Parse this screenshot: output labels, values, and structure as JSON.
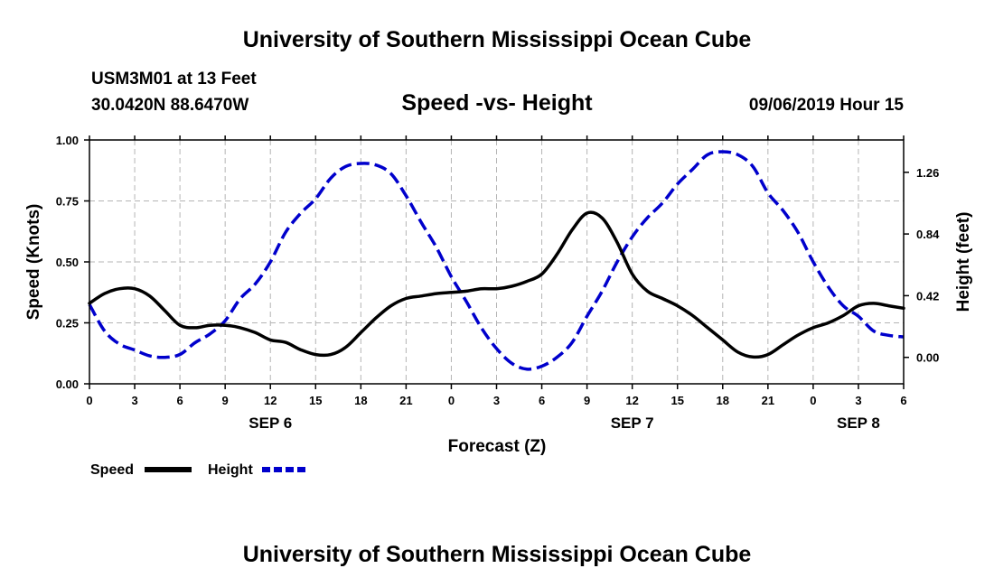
{
  "header": {
    "title": "University of Southern Mississippi Ocean Cube",
    "station": "USM3M01 at 13 Feet",
    "coords": "30.0420N 88.6470W",
    "subtitle": "Speed -vs- Height",
    "datetime": "09/06/2019 Hour 15"
  },
  "footer": {
    "title": "University of Southern Mississippi Ocean Cube"
  },
  "colors": {
    "speed": "#000000",
    "height": "#0000cc",
    "grid": "#b4b4b4"
  },
  "chart_data": {
    "type": "line",
    "title": "Speed -vs- Height",
    "xlabel": "Forecast (Z)",
    "ylabel": "Speed (Knots)",
    "y2label": "Height (feet)",
    "xlim": [
      0,
      54
    ],
    "ylim": [
      0,
      1.0
    ],
    "y2lim": [
      -0.18,
      1.48
    ],
    "grid": true,
    "legend_position": "bottom-left",
    "x_ticks": [
      0,
      3,
      6,
      9,
      12,
      15,
      18,
      21,
      24,
      27,
      30,
      33,
      36,
      39,
      42,
      45,
      48,
      51,
      54
    ],
    "x_tick_labels": [
      "0",
      "3",
      "6",
      "9",
      "12",
      "15",
      "18",
      "21",
      "0",
      "3",
      "6",
      "9",
      "12",
      "15",
      "18",
      "21",
      "0",
      "3",
      "6"
    ],
    "y_ticks": [
      0.0,
      0.25,
      0.5,
      0.75,
      1.0
    ],
    "y_tick_labels": [
      "0.00",
      "0.25",
      "0.50",
      "0.75",
      "1.00"
    ],
    "y2_ticks": [
      0.0,
      0.42,
      0.84,
      1.26
    ],
    "y2_tick_labels": [
      "0.00",
      "0.42",
      "0.84",
      "1.26"
    ],
    "day_labels": [
      {
        "x": 12,
        "label": "SEP 6"
      },
      {
        "x": 36,
        "label": "SEP 7"
      },
      {
        "x": 51,
        "label": "SEP 8"
      }
    ],
    "series": [
      {
        "name": "Speed",
        "axis": "left",
        "style": "solid",
        "x": [
          0,
          1,
          2,
          3,
          4,
          5,
          6,
          7,
          8,
          9,
          10,
          11,
          12,
          13,
          14,
          15,
          16,
          17,
          18,
          19,
          20,
          21,
          22,
          23,
          24,
          25,
          26,
          27,
          28,
          29,
          30,
          31,
          32,
          33,
          34,
          35,
          36,
          37,
          38,
          39,
          40,
          41,
          42,
          43,
          44,
          45,
          46,
          47,
          48,
          49,
          50,
          51,
          52,
          53,
          54
        ],
        "values": [
          0.33,
          0.37,
          0.39,
          0.39,
          0.36,
          0.3,
          0.24,
          0.23,
          0.24,
          0.24,
          0.23,
          0.21,
          0.18,
          0.17,
          0.14,
          0.12,
          0.12,
          0.15,
          0.21,
          0.27,
          0.32,
          0.35,
          0.36,
          0.37,
          0.375,
          0.38,
          0.39,
          0.39,
          0.4,
          0.42,
          0.45,
          0.53,
          0.63,
          0.7,
          0.68,
          0.58,
          0.45,
          0.38,
          0.35,
          0.32,
          0.28,
          0.23,
          0.18,
          0.13,
          0.11,
          0.12,
          0.16,
          0.2,
          0.23,
          0.25,
          0.28,
          0.32,
          0.33,
          0.32,
          0.31
        ]
      },
      {
        "name": "Height",
        "axis": "right",
        "style": "dashed",
        "x": [
          0,
          1,
          2,
          3,
          4,
          5,
          6,
          7,
          8,
          9,
          10,
          11,
          12,
          13,
          14,
          15,
          16,
          17,
          18,
          19,
          20,
          21,
          22,
          23,
          24,
          25,
          26,
          27,
          28,
          29,
          30,
          31,
          32,
          33,
          34,
          35,
          36,
          37,
          38,
          39,
          40,
          41,
          42,
          43,
          44,
          45,
          46,
          47,
          48,
          49,
          50,
          51,
          52,
          53,
          54
        ],
        "values": [
          0.36,
          0.18,
          0.09,
          0.05,
          0.01,
          0.0,
          0.02,
          0.1,
          0.16,
          0.25,
          0.4,
          0.5,
          0.65,
          0.85,
          0.98,
          1.08,
          1.22,
          1.3,
          1.32,
          1.31,
          1.25,
          1.1,
          0.92,
          0.75,
          0.55,
          0.38,
          0.2,
          0.06,
          -0.04,
          -0.08,
          -0.06,
          0.0,
          0.1,
          0.28,
          0.45,
          0.65,
          0.82,
          0.95,
          1.05,
          1.18,
          1.28,
          1.38,
          1.4,
          1.38,
          1.3,
          1.12,
          1.0,
          0.85,
          0.65,
          0.48,
          0.35,
          0.28,
          0.18,
          0.15,
          0.14
        ]
      }
    ]
  }
}
